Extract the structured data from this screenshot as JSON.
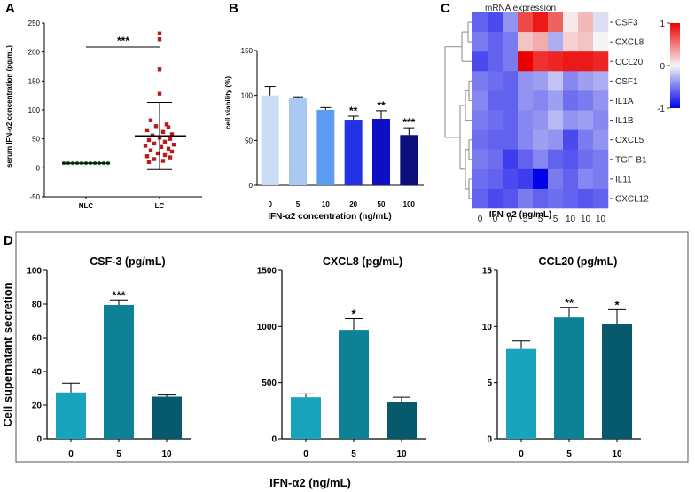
{
  "panels": {
    "A": "A",
    "B": "B",
    "C": "C",
    "D": "D"
  },
  "colors": {
    "nlc": "#2e7d32",
    "lc": "#b71c1c",
    "b_bars": [
      "#c9ddf7",
      "#a9c8f2",
      "#5b9cf0",
      "#2233e6",
      "#0d0fc4",
      "#0b0f7e"
    ],
    "d_bars": [
      "#1aa3bd",
      "#0d8196",
      "#075a6c"
    ]
  },
  "chart_data": [
    {
      "id": "A",
      "type": "scatter",
      "title": "",
      "xlabel": "",
      "ylabel": "serum IFN-α2 concentration (pg/mL)",
      "ylim": [
        -50,
        250
      ],
      "yticks": [
        "-50",
        "0",
        "50",
        "100",
        "150",
        "200",
        "250"
      ],
      "categories": [
        "NLC",
        "LC"
      ],
      "groups": [
        {
          "name": "NLC",
          "mean": 8,
          "points": [
            8,
            8,
            8,
            8,
            8,
            8,
            8,
            8,
            8,
            8,
            8
          ]
        },
        {
          "name": "LC",
          "mean": 55,
          "sd": 58,
          "points": [
            232,
            222,
            170,
            128,
            82,
            75,
            72,
            70,
            65,
            62,
            58,
            56,
            52,
            50,
            48,
            45,
            42,
            40,
            38,
            36,
            33,
            30,
            28,
            25,
            22,
            20,
            18,
            15,
            12,
            10
          ]
        }
      ],
      "significance": "***"
    },
    {
      "id": "B",
      "type": "bar",
      "xlabel": "IFN-α2 concentration (ng/mL)",
      "ylabel": "cell viability (%)",
      "ylim": [
        0,
        150
      ],
      "yticks": [
        "0",
        "50",
        "100",
        "150"
      ],
      "categories": [
        "0",
        "5",
        "10",
        "20",
        "50",
        "100"
      ],
      "values": [
        100,
        97,
        84,
        73,
        74,
        56
      ],
      "errors": [
        10,
        1.5,
        2.5,
        4,
        9,
        8
      ],
      "annotations": [
        "",
        "",
        "",
        "**",
        "**",
        "***"
      ]
    },
    {
      "id": "C",
      "type": "heatmap",
      "title": "mRNA expression",
      "xlabel": "IFN-α2 (ng/mL)",
      "columns": [
        "0",
        "0",
        "0",
        "5",
        "5",
        "5",
        "10",
        "10",
        "10"
      ],
      "rows": [
        "CSF3",
        "CXCL8",
        "CCL20",
        "CSF1",
        "IL1A",
        "IL1B",
        "CXCL5",
        "TGF-B1",
        "IL11",
        "CXCL12"
      ],
      "scale": [
        -1,
        1
      ],
      "scale_ticks": [
        "1",
        "0",
        "-1"
      ],
      "values": [
        [
          -0.6,
          -0.7,
          -0.4,
          0.7,
          0.9,
          0.6,
          0.05,
          0.25,
          -0.1
        ],
        [
          -0.5,
          -0.6,
          -0.5,
          0.2,
          0.3,
          -0.3,
          0.15,
          0.2,
          0.0
        ],
        [
          -0.7,
          -0.6,
          -0.5,
          1.0,
          0.8,
          0.85,
          0.9,
          0.9,
          0.85
        ],
        [
          -0.5,
          -0.55,
          -0.6,
          -0.4,
          -0.35,
          -0.2,
          -0.45,
          -0.35,
          -0.3
        ],
        [
          -0.45,
          -0.6,
          -0.6,
          -0.4,
          -0.45,
          -0.35,
          -0.55,
          -0.5,
          -0.4
        ],
        [
          -0.5,
          -0.55,
          -0.6,
          -0.45,
          -0.4,
          -0.25,
          -0.4,
          -0.35,
          -0.45
        ],
        [
          -0.55,
          -0.6,
          -0.6,
          -0.45,
          -0.35,
          -0.4,
          -0.7,
          -0.5,
          -0.4
        ],
        [
          -0.5,
          -0.55,
          -0.75,
          -0.6,
          -0.45,
          -0.6,
          -0.65,
          -0.55,
          -0.5
        ],
        [
          -0.55,
          -0.6,
          -0.7,
          -0.75,
          -1.0,
          -0.5,
          -0.6,
          -0.45,
          -0.5
        ],
        [
          -0.6,
          -0.7,
          -0.65,
          -0.5,
          -0.6,
          -0.55,
          -0.6,
          -0.65,
          -0.6
        ]
      ]
    },
    {
      "id": "D1",
      "type": "bar",
      "title": "CSF-3 (pg/mL)",
      "categories": [
        "0",
        "5",
        "10"
      ],
      "values": [
        27.5,
        79.5,
        25
      ],
      "errors": [
        5.5,
        3,
        1
      ],
      "ylim": [
        0,
        100
      ],
      "yticks": [
        "0",
        "20",
        "40",
        "60",
        "80",
        "100"
      ],
      "annotations": [
        "",
        "***",
        ""
      ]
    },
    {
      "id": "D2",
      "type": "bar",
      "title": "CXCL8 (pg/mL)",
      "categories": [
        "0",
        "5",
        "10"
      ],
      "values": [
        370,
        970,
        330
      ],
      "errors": [
        30,
        100,
        40
      ],
      "ylim": [
        0,
        1500
      ],
      "yticks": [
        "0",
        "500",
        "1000",
        "1500"
      ],
      "annotations": [
        "",
        "*",
        ""
      ]
    },
    {
      "id": "D3",
      "type": "bar",
      "title": "CCL20 (pg/mL)",
      "categories": [
        "0",
        "5",
        "10"
      ],
      "values": [
        8,
        10.8,
        10.2
      ],
      "errors": [
        0.7,
        0.9,
        1.3
      ],
      "ylim": [
        0,
        15
      ],
      "yticks": [
        "0",
        "5",
        "10",
        "15"
      ],
      "annotations": [
        "",
        "**",
        "*"
      ]
    }
  ],
  "panel_d": {
    "ylabel": "Cell supernatant secretion",
    "xlabel": "IFN-α2 (ng/mL)"
  }
}
